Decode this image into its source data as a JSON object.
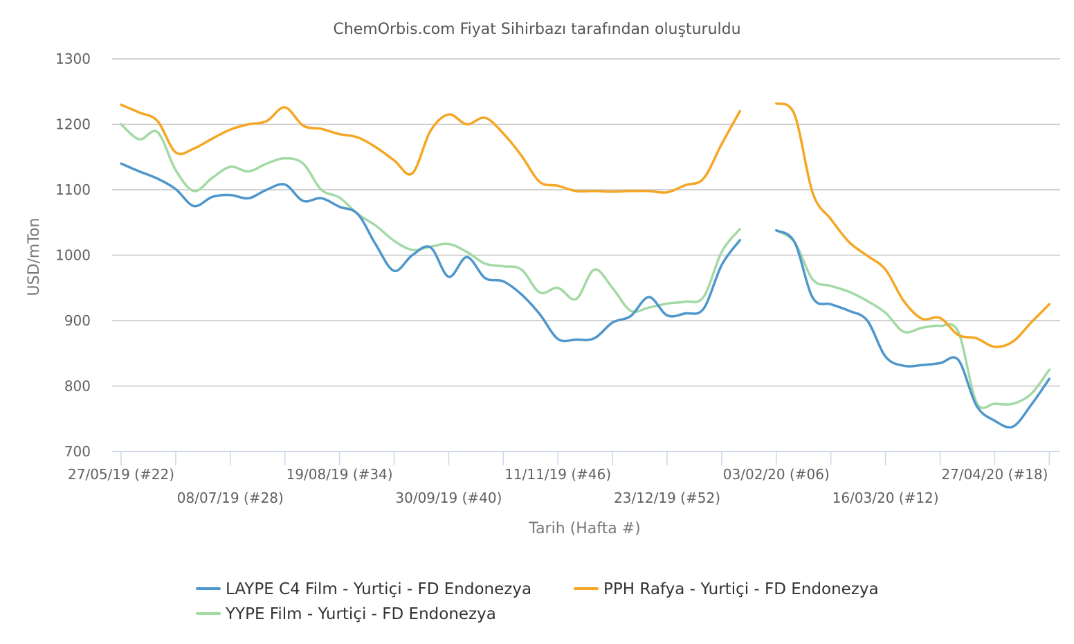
{
  "chart_data": {
    "type": "line",
    "title": "ChemOrbis.com Fiyat Sihirbazı tarafından oluşturuldu",
    "xlabel": "Tarih (Hafta #)",
    "ylabel": "USD/mTon",
    "ylim": [
      700,
      1300
    ],
    "yticks": [
      700,
      800,
      900,
      1000,
      1100,
      1200,
      1300
    ],
    "grid": true,
    "legend_position": "bottom",
    "x_unit": "week",
    "x_start": "27/05/19 (#22)",
    "xtick_labels": [
      "27/05/19 (#22)",
      "08/07/19 (#28)",
      "19/08/19 (#34)",
      "30/09/19 (#40)",
      "11/11/19 (#46)",
      "23/12/19 (#52)",
      "03/02/20 (#06)",
      "16/03/20 (#12)",
      "27/04/20 (#18)"
    ],
    "series": [
      {
        "name": "LAYPE C4 Film - Yurtiçi  - FD Endonezya",
        "color": "#4e96cb",
        "values": [
          1140,
          1128,
          1117,
          1101,
          1075,
          1089,
          1092,
          1087,
          1100,
          1108,
          1083,
          1087,
          1074,
          1063,
          1016,
          976,
          1000,
          1012,
          967,
          997,
          965,
          960,
          940,
          910,
          872,
          871,
          873,
          897,
          907,
          936,
          908,
          911,
          918,
          985,
          1023,
          null,
          1038,
          1020,
          935,
          925,
          915,
          900,
          845,
          831,
          832,
          835,
          840,
          770,
          747,
          738,
          771,
          811
        ]
      },
      {
        "name": "PPH Rafya - Yurtiçi  - FD Endonezya",
        "color": "#f5a623",
        "values": [
          1230,
          1218,
          1205,
          1157,
          1163,
          1178,
          1192,
          1200,
          1205,
          1226,
          1198,
          1193,
          1185,
          1180,
          1165,
          1145,
          1125,
          1190,
          1215,
          1200,
          1210,
          1186,
          1152,
          1112,
          1106,
          1098,
          1098,
          1097,
          1098,
          1098,
          1096,
          1107,
          1117,
          1170,
          1220,
          null,
          1232,
          1215,
          1095,
          1055,
          1020,
          999,
          978,
          930,
          903,
          904,
          878,
          873,
          860,
          868,
          897,
          925
        ]
      },
      {
        "name": "YYPE Film - Yurtiçi  - FD Endonezya",
        "color": "#a3d9a5",
        "values": [
          1200,
          1177,
          1188,
          1130,
          1098,
          1118,
          1135,
          1128,
          1140,
          1148,
          1140,
          1100,
          1088,
          1063,
          1045,
          1022,
          1008,
          1013,
          1017,
          1005,
          987,
          983,
          978,
          943,
          950,
          933,
          978,
          950,
          915,
          920,
          926,
          929,
          936,
          1005,
          1040,
          null,
          1038,
          1020,
          963,
          953,
          944,
          930,
          912,
          883,
          889,
          892,
          883,
          775,
          773,
          773,
          788,
          825
        ]
      }
    ]
  }
}
